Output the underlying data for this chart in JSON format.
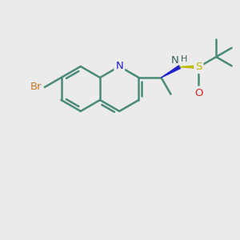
{
  "background_color": "#ebebeb",
  "bond_color": "#4a8a7a",
  "bond_width": 1.8,
  "figsize": [
    3.0,
    3.0
  ],
  "dpi": 100,
  "atoms": {
    "Br": {
      "color": "#cc7722"
    },
    "N": {
      "color": "#2020cc"
    },
    "NH": {
      "color": "#3a6060"
    },
    "S": {
      "color": "#bbbb00"
    },
    "O": {
      "color": "#dd2222"
    }
  }
}
